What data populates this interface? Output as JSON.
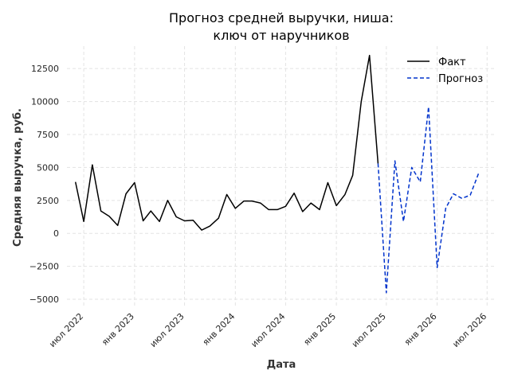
{
  "chart_data": {
    "type": "line",
    "title_lines": [
      "Прогноз средней выручки, ниша:",
      "ключ от наручников"
    ],
    "xlabel": "Дата",
    "ylabel": "Средняя выручка, руб.",
    "ylim": [
      -5600,
      14200
    ],
    "xlim": [
      "2022-05-01",
      "2026-08-01"
    ],
    "x_ticks": [
      {
        "date": "2022-07-01",
        "label": "июл 2022"
      },
      {
        "date": "2023-01-01",
        "label": "янв 2023"
      },
      {
        "date": "2023-07-01",
        "label": "июл 2023"
      },
      {
        "date": "2024-01-01",
        "label": "янв 2024"
      },
      {
        "date": "2024-07-01",
        "label": "июл 2024"
      },
      {
        "date": "2025-01-01",
        "label": "янв 2025"
      },
      {
        "date": "2025-07-01",
        "label": "июл 2025"
      },
      {
        "date": "2026-01-01",
        "label": "янв 2026"
      },
      {
        "date": "2026-07-01",
        "label": "июл 2026"
      }
    ],
    "y_ticks": [
      {
        "value": 12500,
        "label": "12500"
      },
      {
        "value": 10000,
        "label": "10000"
      },
      {
        "value": 7500,
        "label": "7500"
      },
      {
        "value": 5000,
        "label": "5000"
      },
      {
        "value": 2500,
        "label": "2500"
      },
      {
        "value": 0,
        "label": "0"
      },
      {
        "value": -2500,
        "label": "−2500"
      },
      {
        "value": -5000,
        "label": "−5000"
      }
    ],
    "grid": true,
    "legend_position": "top-right",
    "series": [
      {
        "name": "Факт",
        "color": "#000000",
        "style": "solid",
        "points": [
          {
            "x": "2022-06-01",
            "y": 3900
          },
          {
            "x": "2022-07-01",
            "y": 900
          },
          {
            "x": "2022-08-01",
            "y": 5200
          },
          {
            "x": "2022-09-01",
            "y": 1700
          },
          {
            "x": "2022-10-01",
            "y": 1300
          },
          {
            "x": "2022-11-01",
            "y": 600
          },
          {
            "x": "2022-12-01",
            "y": 3000
          },
          {
            "x": "2023-01-01",
            "y": 3850
          },
          {
            "x": "2023-02-01",
            "y": 950
          },
          {
            "x": "2023-03-01",
            "y": 1700
          },
          {
            "x": "2023-04-01",
            "y": 900
          },
          {
            "x": "2023-05-01",
            "y": 2500
          },
          {
            "x": "2023-06-01",
            "y": 1250
          },
          {
            "x": "2023-07-01",
            "y": 950
          },
          {
            "x": "2023-08-01",
            "y": 1000
          },
          {
            "x": "2023-09-01",
            "y": 250
          },
          {
            "x": "2023-10-01",
            "y": 550
          },
          {
            "x": "2023-11-01",
            "y": 1150
          },
          {
            "x": "2023-12-01",
            "y": 2950
          },
          {
            "x": "2024-01-01",
            "y": 1900
          },
          {
            "x": "2024-02-01",
            "y": 2450
          },
          {
            "x": "2024-03-01",
            "y": 2450
          },
          {
            "x": "2024-04-01",
            "y": 2300
          },
          {
            "x": "2024-05-01",
            "y": 1800
          },
          {
            "x": "2024-06-01",
            "y": 1800
          },
          {
            "x": "2024-07-01",
            "y": 2050
          },
          {
            "x": "2024-08-01",
            "y": 3050
          },
          {
            "x": "2024-09-01",
            "y": 1650
          },
          {
            "x": "2024-10-01",
            "y": 2300
          },
          {
            "x": "2024-11-01",
            "y": 1800
          },
          {
            "x": "2024-12-01",
            "y": 3850
          },
          {
            "x": "2025-01-01",
            "y": 2100
          },
          {
            "x": "2025-02-01",
            "y": 2950
          },
          {
            "x": "2025-03-01",
            "y": 4400
          },
          {
            "x": "2025-04-01",
            "y": 10000
          },
          {
            "x": "2025-05-01",
            "y": 13500
          },
          {
            "x": "2025-06-01",
            "y": 5300
          }
        ]
      },
      {
        "name": "Прогноз",
        "color": "#0033cc",
        "style": "dashed",
        "points": [
          {
            "x": "2025-06-01",
            "y": 5300
          },
          {
            "x": "2025-07-01",
            "y": -4500
          },
          {
            "x": "2025-08-01",
            "y": 5500
          },
          {
            "x": "2025-09-01",
            "y": 900
          },
          {
            "x": "2025-10-01",
            "y": 5000
          },
          {
            "x": "2025-11-01",
            "y": 3900
          },
          {
            "x": "2025-12-01",
            "y": 9600
          },
          {
            "x": "2026-01-01",
            "y": -2600
          },
          {
            "x": "2026-02-01",
            "y": 1900
          },
          {
            "x": "2026-03-01",
            "y": 3000
          },
          {
            "x": "2026-04-01",
            "y": 2650
          },
          {
            "x": "2026-05-01",
            "y": 2900
          },
          {
            "x": "2026-06-01",
            "y": 4600
          }
        ]
      }
    ]
  }
}
